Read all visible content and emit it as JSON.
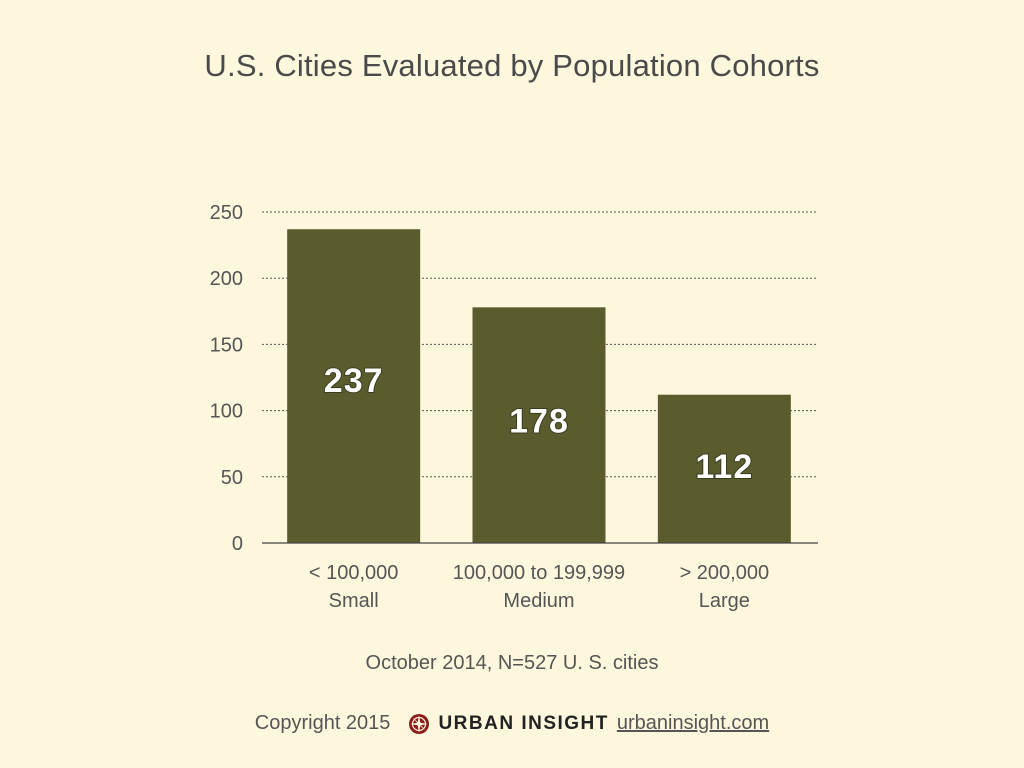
{
  "chart_data": {
    "type": "bar",
    "title": "U.S. Cities Evaluated by Population Cohorts",
    "categories": [
      {
        "range": "< 100,000",
        "name": "Small"
      },
      {
        "range": "100,000 to 199,999",
        "name": "Medium"
      },
      {
        "range": "> 200,000",
        "name": "Large"
      }
    ],
    "values": [
      237,
      178,
      112
    ],
    "data_labels": [
      "237",
      "178",
      "112"
    ],
    "ylim": [
      0,
      250
    ],
    "yticks": [
      0,
      50,
      100,
      150,
      200,
      250
    ],
    "grid": true,
    "bar_color": "#5a5c2e"
  },
  "caption": "October 2014, N=527 U. S. cities",
  "footer": {
    "copyright": "Copyright 2015",
    "brand": "URBAN INSIGHT",
    "link": "urbaninsight.com"
  },
  "colors": {
    "background": "#fdf7dd",
    "bar": "#5a5c2e",
    "logo": "#8b1a1a"
  }
}
